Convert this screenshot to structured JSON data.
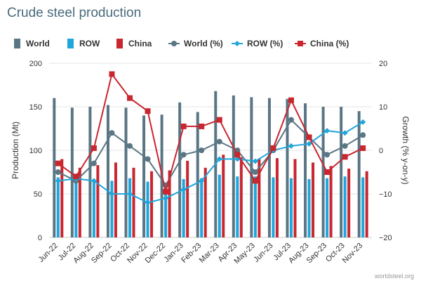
{
  "chart_data": {
    "type": "bar-line-combo",
    "title": "Crude steel production",
    "credit": "worldsteel.org",
    "ylabel": "Production (Mt)",
    "y2label": "Growth (% y-on-y)",
    "ylim": [
      0,
      200
    ],
    "y2lim": [
      -20,
      20
    ],
    "yticks": [
      0,
      50,
      100,
      150,
      200
    ],
    "y2ticks": [
      -20,
      -10,
      0,
      10,
      20
    ],
    "categories": [
      "Jun-22",
      "Jul-22",
      "Aug-22",
      "Sep-22",
      "Oct-22",
      "Nov-22",
      "Dec-22",
      "Jan-23",
      "Feb-23",
      "Mar-23",
      "Apr-23",
      "May-23",
      "Jun-23",
      "Jul-23",
      "Aug-23",
      "Sep-23",
      "Oct-23",
      "Nov-23"
    ],
    "bar_series": [
      {
        "name": "World",
        "color": "#5a7684",
        "values": [
          160,
          149,
          150,
          152,
          149,
          140,
          141,
          155,
          144,
          168,
          163,
          161,
          160,
          159,
          154,
          150,
          150,
          145
        ]
      },
      {
        "name": "ROW",
        "color": "#1fa6dc",
        "values": [
          69,
          67,
          66,
          65,
          68,
          64,
          63,
          67,
          68,
          72,
          70,
          70,
          69,
          68,
          67,
          68,
          70,
          69
        ]
      },
      {
        "name": "China",
        "color": "#c9262f",
        "values": [
          90,
          80,
          83,
          86,
          80,
          76,
          77,
          88,
          80,
          95,
          92,
          90,
          91,
          90,
          86,
          82,
          79,
          76
        ]
      }
    ],
    "line_series": [
      {
        "name": "World (%)",
        "color": "#5a7684",
        "marker": "circle",
        "values": [
          -5,
          -7,
          -3,
          4,
          1,
          -2,
          -8,
          -1,
          0,
          2,
          0,
          -5,
          0,
          7,
          3,
          -1,
          1,
          3.5
        ]
      },
      {
        "name": "ROW (%)",
        "color": "#1fa6dc",
        "marker": "diamond",
        "values": [
          -7,
          -6.5,
          -7,
          -10,
          -10,
          -12,
          -11,
          -9,
          -7,
          -2,
          -2,
          -2.5,
          0,
          1,
          1.5,
          4.5,
          4,
          6.5
        ]
      },
      {
        "name": "China (%)",
        "color": "#c9262f",
        "marker": "square",
        "values": [
          -3,
          -6,
          0.5,
          17.5,
          12,
          9,
          -9.5,
          5.5,
          5.5,
          7,
          -1,
          -7,
          0.5,
          11.5,
          3,
          -5,
          -1.5,
          0.5
        ]
      }
    ]
  }
}
